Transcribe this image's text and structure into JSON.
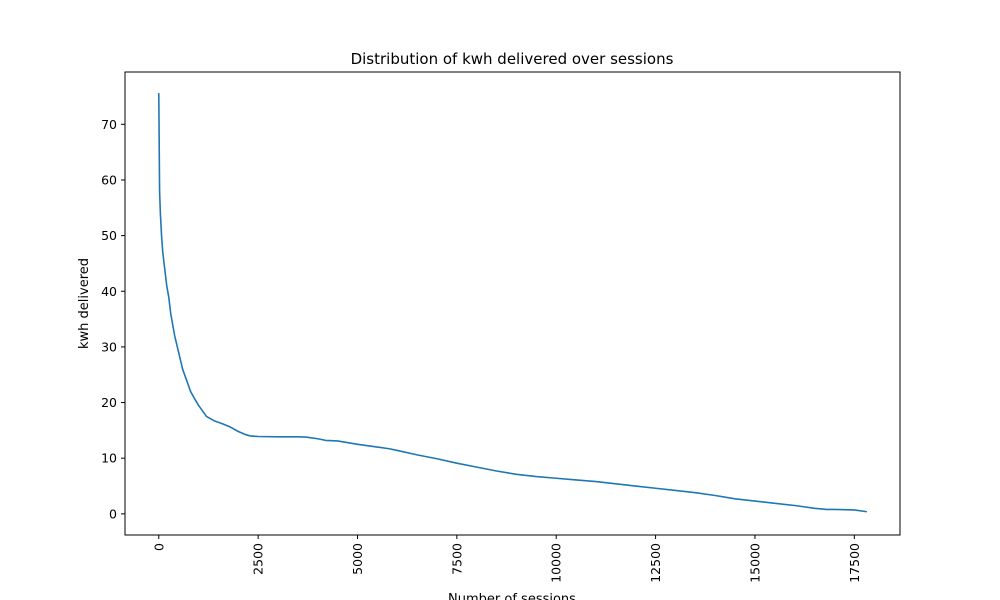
{
  "chart_data": {
    "type": "line",
    "title": "Distribution of kwh delivered over sessions",
    "xlabel": "Number of sessions",
    "ylabel": "kwh delivered",
    "xlim": [
      -850,
      18650
    ],
    "ylim": [
      -3.8,
      79.4
    ],
    "xticks": [
      0,
      2500,
      5000,
      7500,
      10000,
      12500,
      15000,
      17500
    ],
    "yticks": [
      0,
      10,
      20,
      30,
      40,
      50,
      60,
      70
    ],
    "grid": false,
    "legend": "none",
    "series": [
      {
        "color": "#1f77b4",
        "x": [
          0,
          20,
          40,
          70,
          100,
          150,
          200,
          250,
          300,
          350,
          400,
          500,
          600,
          700,
          800,
          900,
          1000,
          1200,
          1400,
          1600,
          1800,
          2000,
          2200,
          2300,
          2500,
          3000,
          3500,
          3700,
          4000,
          4200,
          4500,
          5000,
          5500,
          5800,
          6000,
          6500,
          7000,
          7500,
          8000,
          8500,
          9000,
          9500,
          10000,
          10500,
          11000,
          11500,
          12000,
          12500,
          13000,
          13500,
          14000,
          14500,
          15000,
          15500,
          16000,
          16500,
          16800,
          17000,
          17500,
          17800
        ],
        "values": [
          75.5,
          58,
          54,
          50,
          47,
          44,
          41,
          39,
          36,
          34,
          32,
          29,
          26,
          24,
          22,
          20.7,
          19.5,
          17.5,
          16.7,
          16.2,
          15.6,
          14.8,
          14.2,
          14.0,
          13.9,
          13.85,
          13.85,
          13.8,
          13.5,
          13.2,
          13.1,
          12.5,
          12.0,
          11.7,
          11.4,
          10.6,
          9.9,
          9.1,
          8.4,
          7.7,
          7.1,
          6.7,
          6.4,
          6.1,
          5.8,
          5.4,
          5.0,
          4.6,
          4.2,
          3.8,
          3.3,
          2.7,
          2.3,
          1.9,
          1.5,
          1.0,
          0.8,
          0.8,
          0.7,
          0.4
        ]
      }
    ]
  }
}
